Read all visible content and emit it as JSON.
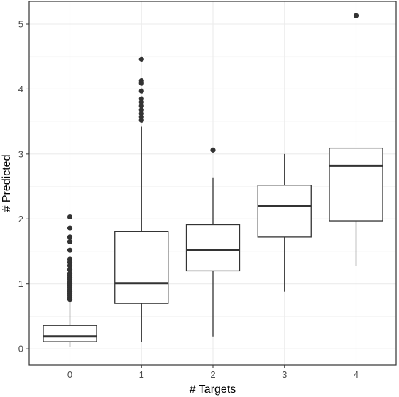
{
  "chart_data": {
    "type": "boxplot",
    "title": "",
    "xlabel": "# Targets",
    "ylabel": "# Predicted",
    "x_ticks": [
      "0",
      "1",
      "2",
      "3",
      "4"
    ],
    "y_ticks": [
      "0",
      "1",
      "2",
      "3",
      "4",
      "5"
    ],
    "ylim": [
      -0.25,
      5.35
    ],
    "grid": true,
    "theme_colors": {
      "panel_border": "#333333",
      "grid_major": "#ebebeb",
      "grid_minor": "#f5f5f5",
      "box_line": "#333333",
      "median_line": "#333333",
      "outlier": "#333333"
    },
    "boxes": [
      {
        "category": "0",
        "whisker_low": 0.03,
        "q1": 0.11,
        "median": 0.19,
        "q3": 0.36,
        "whisker_high": 0.73,
        "outliers": [
          2.03,
          1.86,
          1.72,
          1.65,
          1.52,
          1.38,
          1.33,
          1.28,
          1.22,
          1.16,
          1.13,
          1.1,
          1.07,
          1.03,
          1.0,
          0.97,
          0.94,
          0.91,
          0.88,
          0.85,
          0.82,
          0.79,
          0.76
        ]
      },
      {
        "category": "1",
        "whisker_low": 0.1,
        "q1": 0.7,
        "median": 1.01,
        "q3": 1.81,
        "whisker_high": 3.42,
        "outliers": [
          4.46,
          4.13,
          4.09,
          3.97,
          3.85,
          3.8,
          3.74,
          3.68,
          3.62,
          3.57,
          3.52
        ]
      },
      {
        "category": "2",
        "whisker_low": 0.19,
        "q1": 1.2,
        "median": 1.52,
        "q3": 1.91,
        "whisker_high": 2.64,
        "outliers": [
          3.06
        ]
      },
      {
        "category": "3",
        "whisker_low": 0.88,
        "q1": 1.72,
        "median": 2.2,
        "q3": 2.52,
        "whisker_high": 3.0,
        "outliers": []
      },
      {
        "category": "4",
        "whisker_low": 1.27,
        "q1": 1.97,
        "median": 2.82,
        "q3": 3.09,
        "whisker_high": 3.09,
        "outliers": [
          5.13
        ]
      }
    ]
  }
}
